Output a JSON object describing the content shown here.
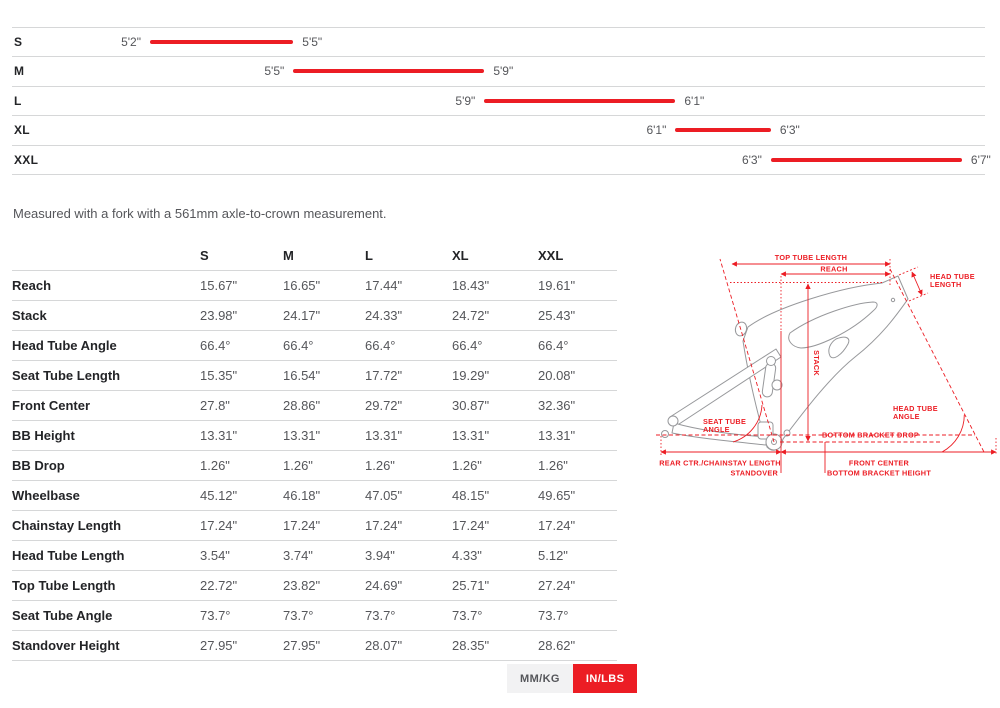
{
  "size_chart": {
    "rows": [
      {
        "size": "S",
        "min": "5'2\"",
        "max": "5'5\"",
        "min_in": 62,
        "max_in": 65
      },
      {
        "size": "M",
        "min": "5'5\"",
        "max": "5'9\"",
        "min_in": 65,
        "max_in": 69
      },
      {
        "size": "L",
        "min": "5'9\"",
        "max": "6'1\"",
        "min_in": 69,
        "max_in": 73
      },
      {
        "size": "XL",
        "min": "6'1\"",
        "max": "6'3\"",
        "min_in": 73,
        "max_in": 75
      },
      {
        "size": "XXL",
        "min": "6'3\"",
        "max": "6'7\"",
        "min_in": 75,
        "max_in": 79
      }
    ]
  },
  "note": "Measured with a fork with a 561mm axle-to-crown measurement.",
  "geometry_table": {
    "columns": [
      "S",
      "M",
      "L",
      "XL",
      "XXL"
    ],
    "rows": [
      {
        "label": "Reach",
        "values": [
          "15.67\"",
          "16.65\"",
          "17.44\"",
          "18.43\"",
          "19.61\""
        ]
      },
      {
        "label": "Stack",
        "values": [
          "23.98\"",
          "24.17\"",
          "24.33\"",
          "24.72\"",
          "25.43\""
        ]
      },
      {
        "label": "Head Tube Angle",
        "values": [
          "66.4°",
          "66.4°",
          "66.4°",
          "66.4°",
          "66.4°"
        ]
      },
      {
        "label": "Seat Tube Length",
        "values": [
          "15.35\"",
          "16.54\"",
          "17.72\"",
          "19.29\"",
          "20.08\""
        ]
      },
      {
        "label": "Front Center",
        "values": [
          "27.8\"",
          "28.86\"",
          "29.72\"",
          "30.87\"",
          "32.36\""
        ]
      },
      {
        "label": "BB Height",
        "values": [
          "13.31\"",
          "13.31\"",
          "13.31\"",
          "13.31\"",
          "13.31\""
        ]
      },
      {
        "label": "BB Drop",
        "values": [
          "1.26\"",
          "1.26\"",
          "1.26\"",
          "1.26\"",
          "1.26\""
        ]
      },
      {
        "label": "Wheelbase",
        "values": [
          "45.12\"",
          "46.18\"",
          "47.05\"",
          "48.15\"",
          "49.65\""
        ]
      },
      {
        "label": "Chainstay Length",
        "values": [
          "17.24\"",
          "17.24\"",
          "17.24\"",
          "17.24\"",
          "17.24\""
        ]
      },
      {
        "label": "Head Tube Length",
        "values": [
          "3.54\"",
          "3.74\"",
          "3.94\"",
          "4.33\"",
          "5.12\""
        ]
      },
      {
        "label": "Top Tube Length",
        "values": [
          "22.72\"",
          "23.82\"",
          "24.69\"",
          "25.71\"",
          "27.24\""
        ]
      },
      {
        "label": "Seat Tube Angle",
        "values": [
          "73.7°",
          "73.7°",
          "73.7°",
          "73.7°",
          "73.7°"
        ]
      },
      {
        "label": "Standover Height",
        "values": [
          "27.95\"",
          "27.95\"",
          "28.07\"",
          "28.35\"",
          "28.62\""
        ]
      }
    ]
  },
  "diagram": {
    "labels": {
      "top_tube_length": "TOP TUBE LENGTH",
      "reach": "REACH",
      "head_tube_length_1": "HEAD TUBE",
      "head_tube_length_2": "LENGTH",
      "stack": "STACK",
      "seat_tube_angle_1": "SEAT TUBE",
      "seat_tube_angle_2": "ANGLE",
      "head_tube_angle_1": "HEAD TUBE",
      "head_tube_angle_2": "ANGLE",
      "bottom_bracket_drop": "BOTTOM BRACKET DROP",
      "rear_center": "REAR CTR./CHAINSTAY LENGTH",
      "front_center": "FRONT CENTER",
      "standover": "STANDOVER",
      "bottom_bracket_height": "BOTTOM BRACKET HEIGHT"
    }
  },
  "unit_toggle": {
    "mm_kg": "MM/KG",
    "in_lbs": "IN/LBS",
    "active": "IN/LBS"
  },
  "colors": {
    "accent": "#ec1d24",
    "text_dark": "#232427",
    "text_gray": "#55565a",
    "divider": "#d6d7d8",
    "frame_outline": "#97989b",
    "inactive_toggle_bg": "#f2f2f3"
  }
}
